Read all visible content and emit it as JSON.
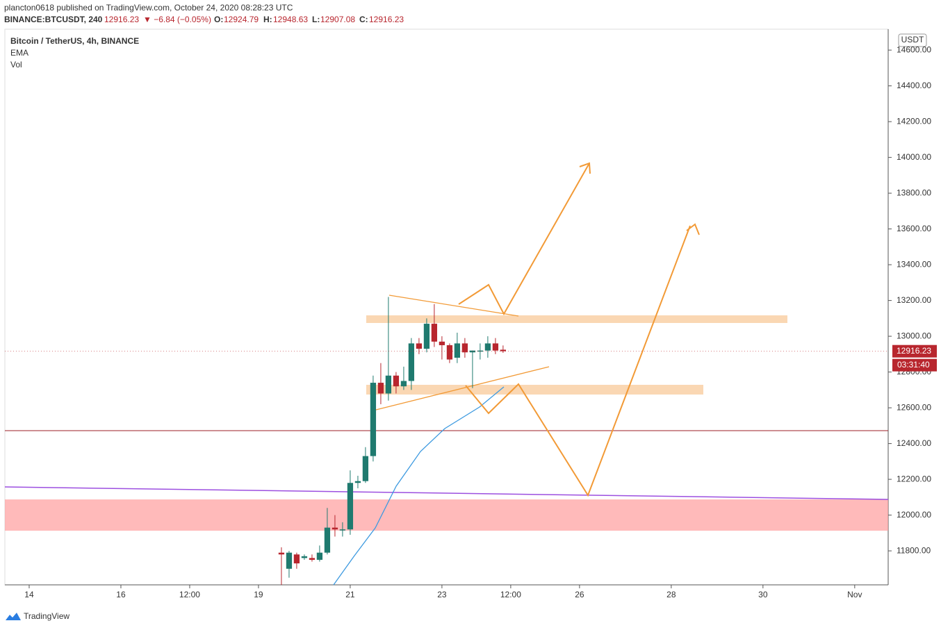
{
  "header": {
    "published": "plancton0618 published on TradingView.com, October 24, 2020 08:28:23 UTC",
    "symbol": "BINANCE:BTCUSDT, 240",
    "change": "▼ −6.84 (−0.05%)",
    "o_label": "O:",
    "h_label": "H:",
    "l_label": "L:",
    "c_label": "C:",
    "countdown": "03:31:40",
    "currency": "USDT",
    "brand": "TradingView"
  },
  "chart_data": {
    "type": "candlestick",
    "title": "Bitcoin / TetherUS, 4h, BINANCE",
    "indicators": [
      "EMA",
      "Vol"
    ],
    "up_color": "#1f7a6f",
    "down_color": "#b8262e",
    "x": [
      19.5,
      19.667,
      19.833,
      20,
      20.167,
      20.333,
      20.5,
      20.667,
      20.833,
      21,
      21.167,
      21.333,
      21.5,
      21.667,
      21.833,
      22,
      22.167,
      22.333,
      22.5,
      22.667,
      22.833,
      23,
      23.167,
      23.333,
      23.5,
      23.667,
      23.833,
      24,
      24.167,
      24.333
    ],
    "open": [
      11790,
      11700,
      11780,
      11760,
      11760,
      11750,
      11790,
      11930,
      11920,
      11920,
      12180,
      12190,
      12330,
      12740,
      12680,
      12780,
      12720,
      12750,
      12960,
      12930,
      13070,
      12970,
      12950,
      12880,
      12960,
      12910,
      12920,
      12920,
      12960,
      12924.79
    ],
    "high": [
      11820,
      11800,
      11790,
      11780,
      11780,
      11830,
      12040,
      12000,
      11960,
      12250,
      12220,
      12380,
      12780,
      12850,
      13220,
      12800,
      12830,
      12990,
      12990,
      13100,
      13180,
      13000,
      12960,
      13020,
      12990,
      12920,
      12960,
      13000,
      12990,
      12948.63
    ],
    "low": [
      11610,
      11650,
      11700,
      11750,
      11740,
      11740,
      11780,
      11880,
      11880,
      11890,
      12150,
      12180,
      12300,
      12620,
      12640,
      12680,
      12700,
      12700,
      12900,
      12910,
      12940,
      12870,
      12850,
      12850,
      12880,
      12710,
      12870,
      12880,
      12900,
      12907.08
    ],
    "close": [
      11780,
      11790,
      11730,
      11770,
      11750,
      11790,
      11930,
      11920,
      11920,
      12180,
      12190,
      12330,
      12740,
      12680,
      12780,
      12720,
      12750,
      12960,
      12930,
      13070,
      12970,
      12950,
      12870,
      12960,
      12910,
      12920,
      12920,
      12960,
      12920,
      12916.23
    ],
    "xlim": [
      13.47,
      32.73
    ],
    "xticks": [
      14,
      16,
      {
        "value": 17.5,
        "label": "12:00"
      },
      19,
      21,
      23,
      {
        "value": 24.5,
        "label": "12:00"
      },
      26,
      28,
      30,
      {
        "value": 32,
        "label": "Nov"
      }
    ],
    "ylim": [
      11610,
      14717
    ],
    "yticks": [
      {
        "value": 11800,
        "label": "11800.00"
      },
      {
        "value": 12000,
        "label": "12000.00"
      },
      {
        "value": 12200,
        "label": "12200.00"
      },
      {
        "value": 12400,
        "label": "12400.00"
      },
      {
        "value": 12600,
        "label": "12600.00"
      },
      {
        "value": 12800,
        "label": "12800.00"
      },
      {
        "value": 13000,
        "label": "13000.00"
      },
      {
        "value": 13200,
        "label": "13200.00"
      },
      {
        "value": 13400,
        "label": "13400.00"
      },
      {
        "value": 13600,
        "label": "13600.00"
      },
      {
        "value": 13800,
        "label": "13800.00"
      },
      {
        "value": 14000,
        "label": "14000.00"
      },
      {
        "value": 14200,
        "label": "14200.00"
      },
      {
        "value": 14400,
        "label": "14400.00"
      },
      {
        "value": 14600,
        "label": "14600.00"
      }
    ]
  }
}
